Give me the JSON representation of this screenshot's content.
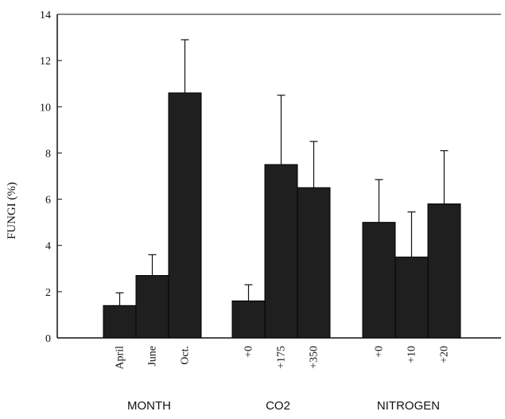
{
  "chart_data": {
    "type": "bar",
    "ylabel": "FUNGI (%)",
    "ylim": [
      0,
      14
    ],
    "yticks": [
      "0",
      "2",
      "4",
      "6",
      "8",
      "10",
      "12",
      "14"
    ],
    "grid": false,
    "bar_color": "#1f1f1f",
    "groups": [
      {
        "label": "MONTH",
        "bars": [
          {
            "label": "April",
            "value": 1.4,
            "error": 0.55
          },
          {
            "label": "June",
            "value": 2.7,
            "error": 0.9
          },
          {
            "label": "Oct.",
            "value": 10.6,
            "error": 2.3
          }
        ]
      },
      {
        "label": "CO2",
        "bars": [
          {
            "label": "+0",
            "value": 1.6,
            "error": 0.7
          },
          {
            "label": "+175",
            "value": 7.5,
            "error": 3.0
          },
          {
            "label": "+350",
            "value": 6.5,
            "error": 2.0
          }
        ]
      },
      {
        "label": "NITROGEN",
        "bars": [
          {
            "label": "+0",
            "value": 5.0,
            "error": 1.85
          },
          {
            "label": "+10",
            "value": 3.5,
            "error": 1.95
          },
          {
            "label": "+20",
            "value": 5.8,
            "error": 2.3
          }
        ]
      }
    ]
  }
}
